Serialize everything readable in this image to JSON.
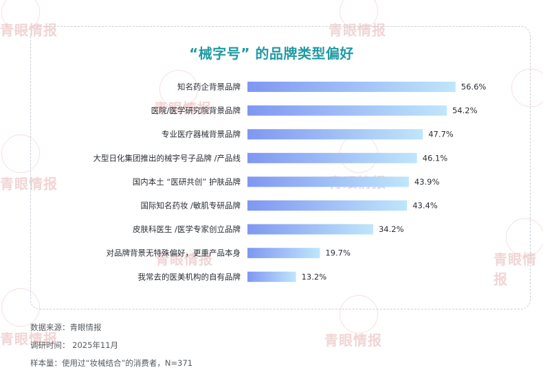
{
  "title": "“械字号” 的品牌类型偏好",
  "chart_data": {
    "type": "bar",
    "orientation": "horizontal",
    "title": "“械字号” 的品牌类型偏好",
    "categories": [
      "知名药企背景品牌",
      "医院/医学研究院背景品牌",
      "专业医疗器械背景品牌",
      "大型日化集团推出的械字号子品牌 /产品线",
      "国内本土 “医研共创” 护肤品牌",
      "国际知名药妆 /敏肌专研品牌",
      "皮肤科医生 /医学专家创立品牌",
      "对品牌背景无特殊偏好，更重产品本身",
      "我常去的医美机构的自有品牌"
    ],
    "values": [
      56.6,
      54.2,
      47.7,
      46.1,
      43.9,
      43.4,
      34.2,
      19.7,
      13.2
    ],
    "value_labels": [
      "56.6%",
      "54.2%",
      "47.7%",
      "46.1%",
      "43.9%",
      "43.4%",
      "34.2%",
      "19.7%",
      "13.2%"
    ],
    "xlim": [
      0,
      60
    ],
    "grid": false,
    "legend": "none",
    "colors": {
      "bar_start": "#7f97f2",
      "bar_end": "#bfe6fb",
      "title": "#1f9aa3"
    }
  },
  "footer": {
    "source": "数据来源：青眼情报",
    "survey_time": "调研时间： 2025年11月",
    "sample": "样本量：使用过“妆械结合”的消费者，N=371"
  },
  "watermark": "青眼情报"
}
